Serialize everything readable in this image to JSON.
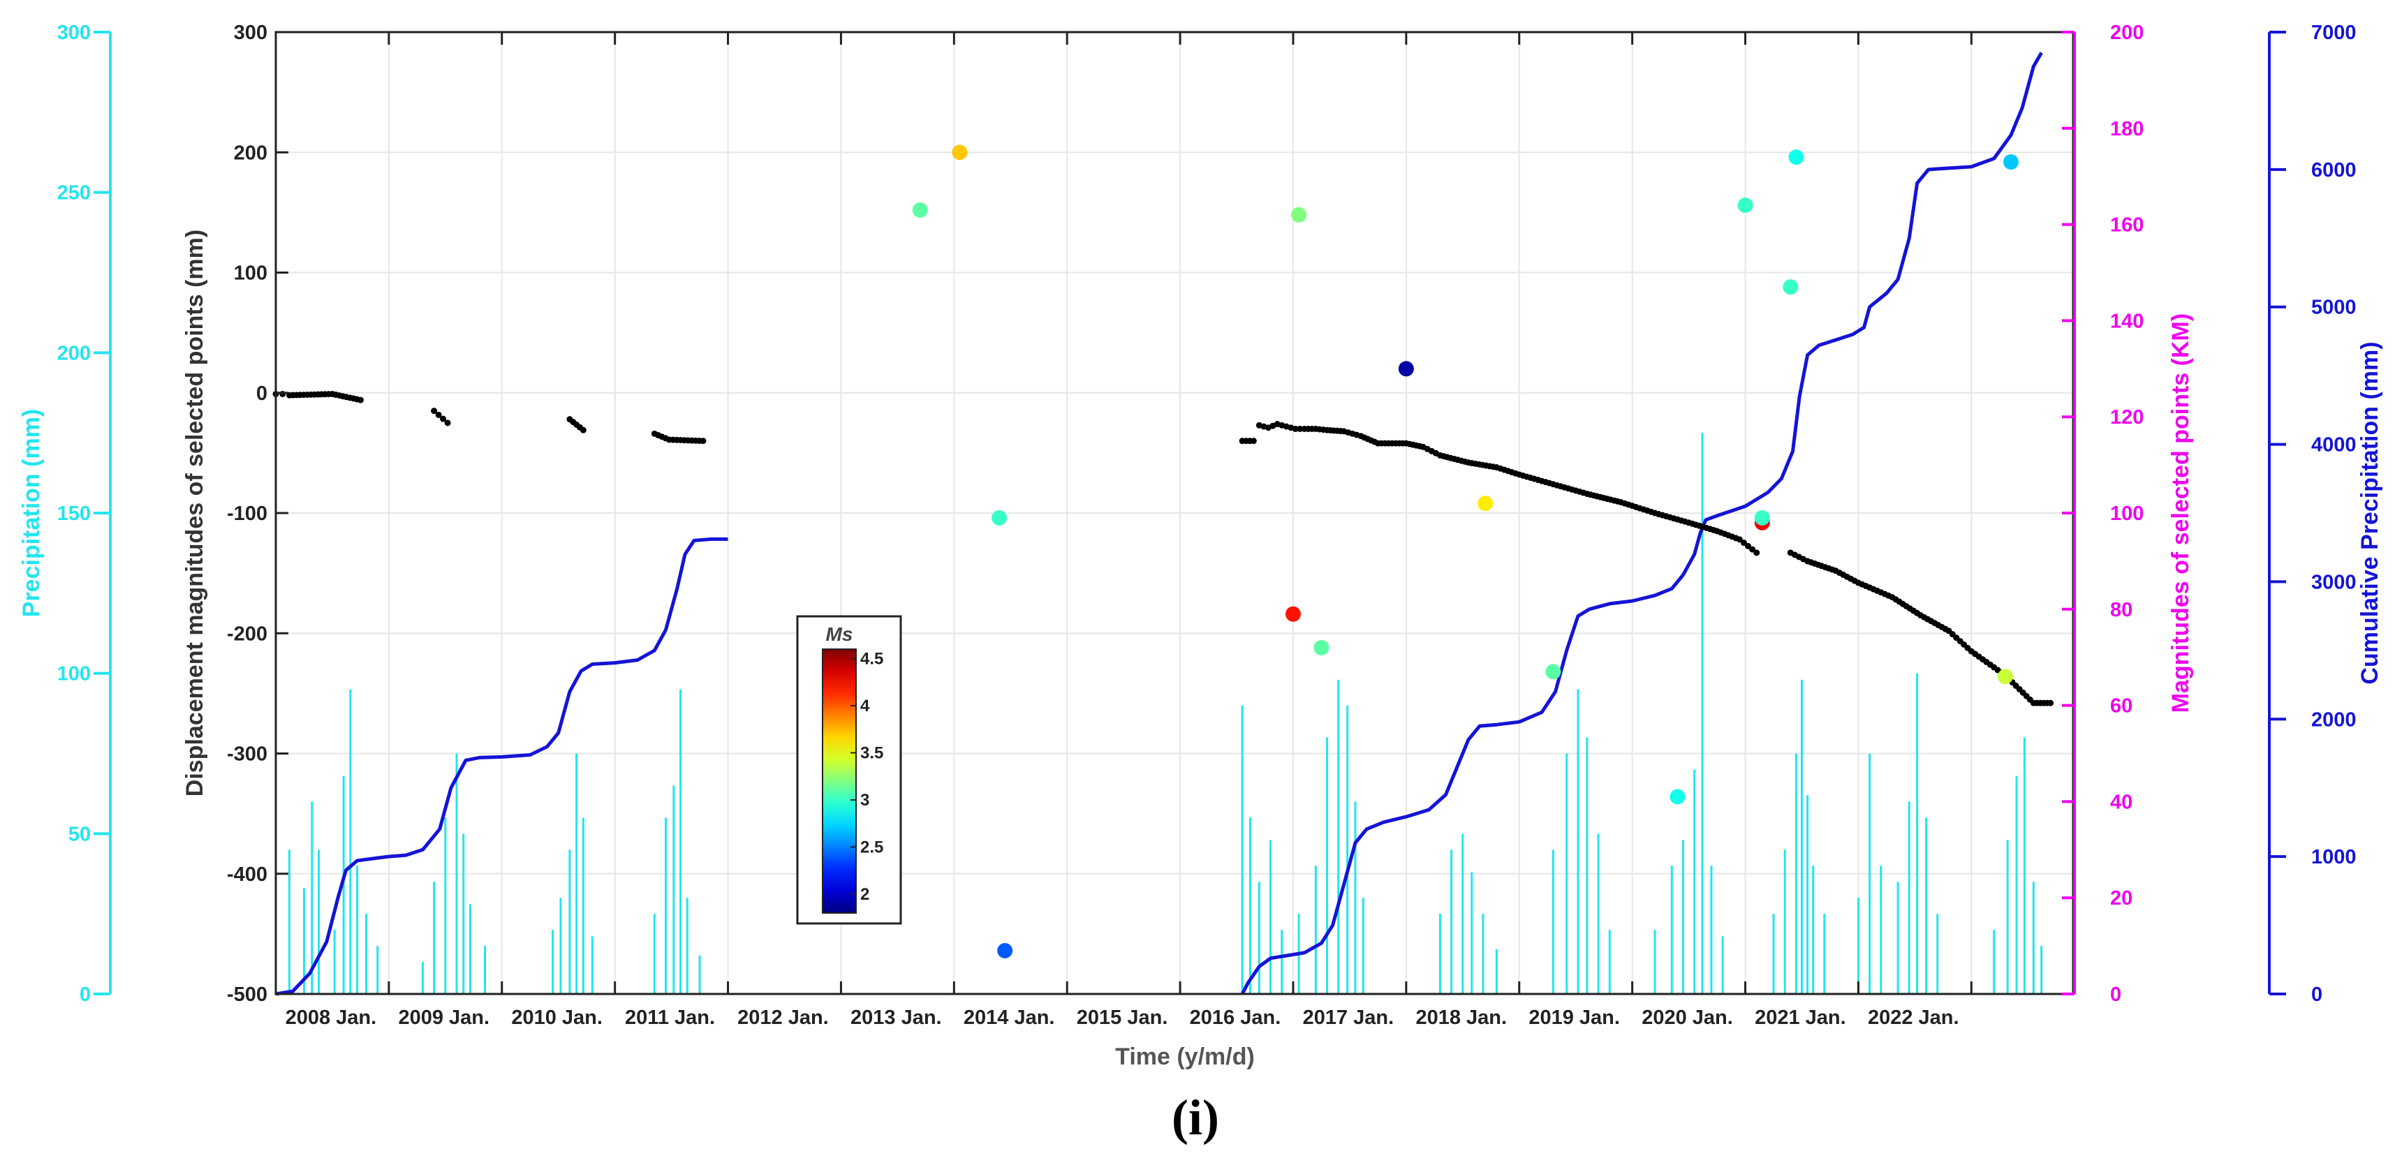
{
  "chart_data": {
    "type": "scatter",
    "title": "",
    "caption": "(i)",
    "xlabel": "Time (y/m/d)",
    "x_ticks": [
      "2008 Jan.",
      "2009 Jan.",
      "2010 Jan.",
      "2011 Jan.",
      "2012 Jan.",
      "2013 Jan.",
      "2014 Jan.",
      "2015 Jan.",
      "2016 Jan.",
      "2017 Jan.",
      "2018 Jan.",
      "2019 Jan.",
      "2020 Jan.",
      "2021 Jan.",
      "2022 Jan."
    ],
    "x_range": [
      2007.0,
      2022.9
    ],
    "axes": {
      "displacement": {
        "label": "Displacement magnitudes of selected points (mm)",
        "ylim": [
          -500,
          300
        ],
        "ticks": [
          300,
          200,
          100,
          0,
          -100,
          -200,
          -300,
          -400,
          -500
        ],
        "color": "#222222"
      },
      "precipitation": {
        "label": "Precipitation (mm)",
        "ylim": [
          0,
          300
        ],
        "ticks": [
          300,
          250,
          200,
          150,
          100,
          50,
          0
        ],
        "color": "#22e5ee"
      },
      "magnitude": {
        "label": "Magnitudes of selected points (KM)",
        "ylim": [
          0,
          200
        ],
        "ticks": [
          200,
          180,
          160,
          140,
          120,
          100,
          80,
          60,
          40,
          20,
          0
        ],
        "color": "#ee00ee"
      },
      "cumulative": {
        "label": "Cumulative Precipitation (mm)",
        "ylim": [
          0,
          7000
        ],
        "ticks": [
          7000,
          6000,
          5000,
          4000,
          3000,
          2000,
          1000,
          0
        ],
        "color": "#1414d6"
      }
    },
    "colorbar": {
      "title": "Ms",
      "range": [
        1.8,
        4.6
      ],
      "ticks": [
        "4.5",
        "4",
        "3.5",
        "3",
        "2.5",
        "2"
      ]
    },
    "series": [
      {
        "name": "Displacement (mm)",
        "axis": "displacement",
        "color": "#000000",
        "segments": [
          [
            [
              2007.0,
              -1
            ],
            [
              2007.06,
              -1
            ],
            [
              2007.12,
              -2
            ],
            [
              2007.5,
              -1
            ],
            [
              2007.75,
              -6
            ],
            [
              2008.4,
              -15
            ],
            [
              2008.52,
              -25
            ],
            [
              2009.6,
              -22
            ],
            [
              2009.72,
              -31
            ],
            [
              2010.35,
              -34
            ],
            [
              2010.48,
              -39
            ],
            [
              2010.78,
              -40
            ]
          ],
          [
            [
              2015.55,
              -40
            ],
            [
              2015.65,
              -40
            ],
            [
              2015.7,
              -27
            ],
            [
              2015.78,
              -29
            ],
            [
              2015.86,
              -26
            ],
            [
              2015.94,
              -28
            ],
            [
              2016.02,
              -30
            ],
            [
              2016.1,
              -30
            ],
            [
              2016.2,
              -30
            ],
            [
              2016.3,
              -31
            ],
            [
              2016.45,
              -32
            ],
            [
              2016.6,
              -36
            ],
            [
              2016.75,
              -42
            ],
            [
              2017.0,
              -42
            ],
            [
              2017.15,
              -45
            ],
            [
              2017.3,
              -52
            ],
            [
              2017.55,
              -58
            ],
            [
              2017.8,
              -62
            ],
            [
              2018.0,
              -68
            ],
            [
              2018.3,
              -76
            ],
            [
              2018.6,
              -84
            ],
            [
              2018.9,
              -91
            ],
            [
              2019.2,
              -100
            ],
            [
              2019.5,
              -108
            ],
            [
              2019.75,
              -115
            ],
            [
              2019.95,
              -122
            ],
            [
              2020.1,
              -133
            ]
          ],
          [
            [
              2020.4,
              -133
            ],
            [
              2020.55,
              -140
            ],
            [
              2020.8,
              -148
            ],
            [
              2021.0,
              -158
            ],
            [
              2021.3,
              -170
            ],
            [
              2021.55,
              -185
            ],
            [
              2021.8,
              -198
            ],
            [
              2022.0,
              -215
            ],
            [
              2022.3,
              -235
            ],
            [
              2022.55,
              -258
            ],
            [
              2022.7,
              -258
            ]
          ]
        ]
      },
      {
        "name": "Precipitation (mm)",
        "axis": "precipitation",
        "color": "#22e5ee",
        "bars": [
          [
            2007.12,
            45
          ],
          [
            2007.25,
            33
          ],
          [
            2007.32,
            60
          ],
          [
            2007.38,
            45
          ],
          [
            2007.52,
            20
          ],
          [
            2007.6,
            68
          ],
          [
            2007.66,
            95
          ],
          [
            2007.72,
            40
          ],
          [
            2007.8,
            25
          ],
          [
            2007.9,
            15
          ],
          [
            2008.3,
            10
          ],
          [
            2008.4,
            35
          ],
          [
            2008.5,
            55
          ],
          [
            2008.6,
            75
          ],
          [
            2008.66,
            50
          ],
          [
            2008.72,
            28
          ],
          [
            2008.85,
            15
          ],
          [
            2009.45,
            20
          ],
          [
            2009.52,
            30
          ],
          [
            2009.6,
            45
          ],
          [
            2009.66,
            75
          ],
          [
            2009.72,
            55
          ],
          [
            2009.8,
            18
          ],
          [
            2010.35,
            25
          ],
          [
            2010.45,
            55
          ],
          [
            2010.52,
            65
          ],
          [
            2010.58,
            95
          ],
          [
            2010.64,
            30
          ],
          [
            2010.75,
            12
          ],
          [
            2015.55,
            90
          ],
          [
            2015.62,
            55
          ],
          [
            2015.7,
            35
          ],
          [
            2015.8,
            48
          ],
          [
            2015.9,
            20
          ],
          [
            2016.05,
            25
          ],
          [
            2016.2,
            40
          ],
          [
            2016.3,
            80
          ],
          [
            2016.4,
            98
          ],
          [
            2016.48,
            90
          ],
          [
            2016.55,
            60
          ],
          [
            2016.62,
            30
          ],
          [
            2017.3,
            25
          ],
          [
            2017.4,
            45
          ],
          [
            2017.5,
            50
          ],
          [
            2017.58,
            38
          ],
          [
            2017.68,
            25
          ],
          [
            2017.8,
            14
          ],
          [
            2018.3,
            45
          ],
          [
            2018.42,
            75
          ],
          [
            2018.52,
            95
          ],
          [
            2018.6,
            80
          ],
          [
            2018.7,
            50
          ],
          [
            2018.8,
            20
          ],
          [
            2019.2,
            20
          ],
          [
            2019.35,
            40
          ],
          [
            2019.45,
            48
          ],
          [
            2019.55,
            70
          ],
          [
            2019.62,
            175
          ],
          [
            2019.7,
            40
          ],
          [
            2019.8,
            18
          ],
          [
            2020.25,
            25
          ],
          [
            2020.35,
            45
          ],
          [
            2020.45,
            75
          ],
          [
            2020.5,
            98
          ],
          [
            2020.55,
            62
          ],
          [
            2020.6,
            40
          ],
          [
            2020.7,
            25
          ],
          [
            2021.0,
            30
          ],
          [
            2021.1,
            75
          ],
          [
            2021.2,
            40
          ],
          [
            2021.35,
            35
          ],
          [
            2021.45,
            60
          ],
          [
            2021.52,
            100
          ],
          [
            2021.6,
            55
          ],
          [
            2021.7,
            25
          ],
          [
            2022.2,
            20
          ],
          [
            2022.32,
            48
          ],
          [
            2022.4,
            68
          ],
          [
            2022.47,
            80
          ],
          [
            2022.55,
            35
          ],
          [
            2022.62,
            15
          ]
        ]
      },
      {
        "name": "Cumulative precipitation (mm)",
        "axis": "cumulative",
        "color": "#1414d6",
        "segments": [
          [
            [
              2007.0,
              0
            ],
            [
              2007.15,
              20
            ],
            [
              2007.3,
              150
            ],
            [
              2007.45,
              380
            ],
            [
              2007.55,
              700
            ],
            [
              2007.62,
              900
            ],
            [
              2007.72,
              970
            ],
            [
              2007.9,
              990
            ],
            [
              2008.0,
              1000
            ],
            [
              2008.15,
              1010
            ],
            [
              2008.3,
              1050
            ],
            [
              2008.45,
              1200
            ],
            [
              2008.55,
              1500
            ],
            [
              2008.68,
              1700
            ],
            [
              2008.8,
              1720
            ],
            [
              2009.0,
              1725
            ],
            [
              2009.25,
              1740
            ],
            [
              2009.4,
              1800
            ],
            [
              2009.5,
              1900
            ],
            [
              2009.6,
              2200
            ],
            [
              2009.7,
              2350
            ],
            [
              2009.8,
              2400
            ],
            [
              2010.0,
              2410
            ],
            [
              2010.2,
              2430
            ],
            [
              2010.35,
              2500
            ],
            [
              2010.45,
              2650
            ],
            [
              2010.55,
              2950
            ],
            [
              2010.62,
              3200
            ],
            [
              2010.7,
              3300
            ],
            [
              2010.85,
              3310
            ],
            [
              2011.0,
              3310
            ]
          ],
          [
            [
              2015.55,
              0
            ],
            [
              2015.6,
              80
            ],
            [
              2015.7,
              200
            ],
            [
              2015.8,
              260
            ],
            [
              2015.95,
              280
            ],
            [
              2016.1,
              300
            ],
            [
              2016.25,
              370
            ],
            [
              2016.35,
              500
            ],
            [
              2016.45,
              800
            ],
            [
              2016.55,
              1100
            ],
            [
              2016.65,
              1200
            ],
            [
              2016.8,
              1250
            ],
            [
              2017.0,
              1290
            ],
            [
              2017.2,
              1340
            ],
            [
              2017.35,
              1450
            ],
            [
              2017.45,
              1650
            ],
            [
              2017.55,
              1850
            ],
            [
              2017.65,
              1950
            ],
            [
              2017.8,
              1960
            ],
            [
              2018.0,
              1980
            ],
            [
              2018.2,
              2050
            ],
            [
              2018.32,
              2200
            ],
            [
              2018.42,
              2500
            ],
            [
              2018.52,
              2750
            ],
            [
              2018.62,
              2800
            ],
            [
              2018.8,
              2840
            ],
            [
              2019.0,
              2860
            ],
            [
              2019.2,
              2900
            ],
            [
              2019.35,
              2950
            ],
            [
              2019.45,
              3050
            ],
            [
              2019.55,
              3200
            ],
            [
              2019.6,
              3350
            ],
            [
              2019.65,
              3450
            ],
            [
              2019.75,
              3480
            ],
            [
              2020.0,
              3550
            ],
            [
              2020.2,
              3650
            ],
            [
              2020.32,
              3750
            ],
            [
              2020.42,
              3950
            ],
            [
              2020.48,
              4350
            ],
            [
              2020.55,
              4650
            ],
            [
              2020.65,
              4720
            ],
            [
              2020.8,
              4760
            ],
            [
              2020.95,
              4800
            ],
            [
              2021.05,
              4850
            ],
            [
              2021.1,
              5000
            ],
            [
              2021.25,
              5100
            ],
            [
              2021.35,
              5200
            ],
            [
              2021.45,
              5500
            ],
            [
              2021.52,
              5900
            ],
            [
              2021.62,
              6000
            ],
            [
              2021.8,
              6010
            ],
            [
              2022.0,
              6020
            ],
            [
              2022.2,
              6080
            ],
            [
              2022.35,
              6250
            ],
            [
              2022.45,
              6450
            ],
            [
              2022.55,
              6750
            ],
            [
              2022.62,
              6850
            ]
          ]
        ]
      },
      {
        "name": "Magnitudes (KM) colored by Ms",
        "axis": "magnitude",
        "points": [
          [
            2012.7,
            163,
            3.1
          ],
          [
            2013.05,
            175,
            3.7
          ],
          [
            2013.4,
            99,
            3.0
          ],
          [
            2013.45,
            9,
            2.4
          ],
          [
            2016.0,
            79,
            4.2
          ],
          [
            2016.05,
            162,
            3.2
          ],
          [
            2016.25,
            72,
            3.1
          ],
          [
            2017.0,
            130,
            1.9
          ],
          [
            2017.7,
            102,
            3.6
          ],
          [
            2018.3,
            67,
            3.1
          ],
          [
            2019.4,
            41,
            2.9
          ],
          [
            2020.0,
            164,
            3.0
          ],
          [
            2020.15,
            98,
            4.3
          ],
          [
            2020.15,
            99,
            3.0
          ],
          [
            2020.4,
            147,
            3.0
          ],
          [
            2020.45,
            174,
            2.9
          ],
          [
            2022.3,
            66,
            3.4
          ],
          [
            2022.35,
            173,
            2.7
          ]
        ]
      }
    ]
  }
}
